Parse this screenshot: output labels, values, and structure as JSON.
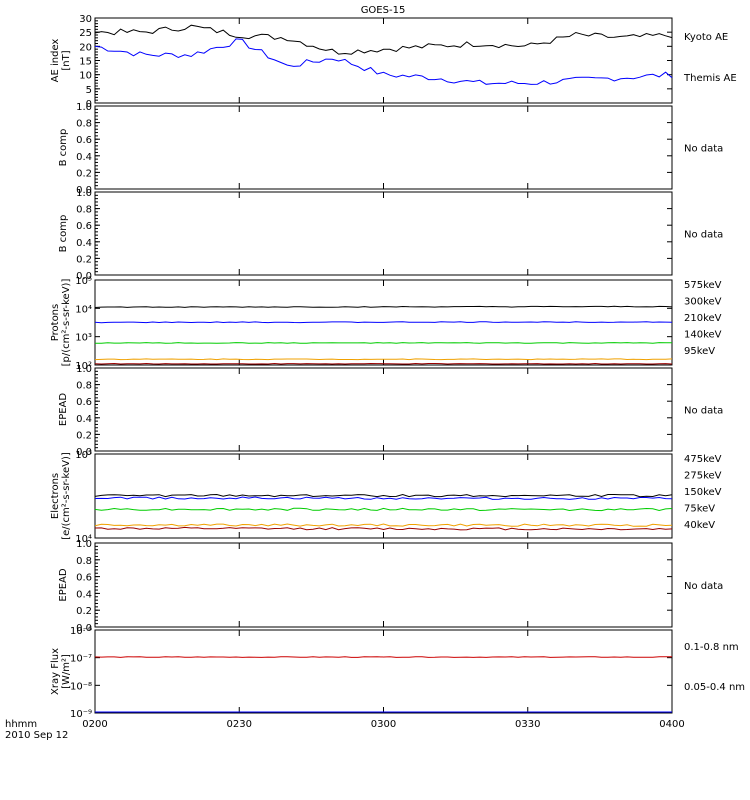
{
  "title": "GOES-15",
  "time_axis": {
    "ticks": [
      "0200",
      "0230",
      "0300",
      "0330",
      "0400"
    ],
    "label_units": "hhmm",
    "label_date": "2010 Sep 12"
  },
  "colors": {
    "black": "#000000",
    "blue": "#0000ff",
    "red": "#cc0000",
    "orange": "#f0a000",
    "green": "#00cc00",
    "darkred": "#990000"
  },
  "chart_data": [
    {
      "type": "line",
      "title": "GOES-15",
      "ylabel": "AE index",
      "yunits": "[nT]",
      "ylim": [
        0,
        30
      ],
      "yticks": [
        "0",
        "5",
        "10",
        "15",
        "20",
        "25",
        "30"
      ],
      "x": [
        "0200",
        "0210",
        "0220",
        "0230",
        "0240",
        "0250",
        "0300",
        "0310",
        "0320",
        "0330",
        "0340",
        "0350",
        "0400"
      ],
      "series": [
        {
          "name": "Kyoto AE",
          "color": "#0000ff",
          "values": [
            20,
            17,
            17,
            22,
            13,
            16,
            10,
            9,
            7,
            7,
            8,
            9,
            10
          ]
        },
        {
          "name": "Themis AE",
          "color": "#000000",
          "values": [
            25,
            25,
            27,
            24,
            23,
            18,
            19,
            20,
            21,
            20,
            24,
            23,
            24
          ]
        }
      ]
    },
    {
      "type": "line",
      "ylabel": "B comp",
      "ylim": [
        0,
        1.0
      ],
      "yticks": [
        "0.0",
        "0.2",
        "0.4",
        "0.6",
        "0.8",
        "1.0"
      ],
      "note": "No data"
    },
    {
      "type": "line",
      "ylabel": "B comp",
      "ylim": [
        0,
        1.0
      ],
      "yticks": [
        "0.0",
        "0.2",
        "0.4",
        "0.6",
        "0.8",
        "1.0"
      ],
      "note": "No data"
    },
    {
      "type": "line",
      "ylabel": "Protons",
      "yunits": "[p/(cm²-s-sr-keV)]",
      "scale": "log",
      "ylim": [
        100,
        100000
      ],
      "yticks": [
        "10²",
        "10³",
        "10⁴",
        "10⁵"
      ],
      "series": [
        {
          "name": "575keV",
          "color": "#990000",
          "values": [
            110,
            110
          ]
        },
        {
          "name": "300keV",
          "color": "#f0a000",
          "values": [
            160,
            160
          ]
        },
        {
          "name": "210keV",
          "color": "#00cc00",
          "values": [
            600,
            600
          ]
        },
        {
          "name": "140keV",
          "color": "#0000ff",
          "values": [
            3200,
            3300
          ]
        },
        {
          "name": "95keV",
          "color": "#000000",
          "values": [
            11000,
            11500
          ]
        }
      ]
    },
    {
      "type": "line",
      "ylabel": "EPEAD",
      "ylim": [
        0,
        1.0
      ],
      "yticks": [
        "0.0",
        "0.2",
        "0.4",
        "0.6",
        "0.8",
        "1.0"
      ],
      "note": "No data"
    },
    {
      "type": "line",
      "ylabel": "Electrons",
      "yunits": "[e/(cm²-s-sr-keV)]",
      "scale": "log",
      "ylim": [
        10000,
        100000
      ],
      "yticks": [
        "10⁴",
        "10⁵"
      ],
      "series": [
        {
          "name": "475keV",
          "color": "#990000",
          "values": [
            13000,
            12800
          ]
        },
        {
          "name": "275keV",
          "color": "#f0a000",
          "values": [
            14300,
            14200
          ]
        },
        {
          "name": "150keV",
          "color": "#00cc00",
          "values": [
            22000,
            21800
          ]
        },
        {
          "name": "75keV",
          "color": "#0000ff",
          "values": [
            30000,
            29500
          ]
        },
        {
          "name": "40keV",
          "color": "#000000",
          "values": [
            32000,
            32000
          ]
        }
      ]
    },
    {
      "type": "line",
      "ylabel": "EPEAD",
      "ylim": [
        0,
        1.0
      ],
      "yticks": [
        "0.0",
        "0.2",
        "0.4",
        "0.6",
        "0.8",
        "1.0"
      ],
      "note": "No data"
    },
    {
      "type": "line",
      "ylabel": "Xray Flux",
      "yunits": "[W/m²]",
      "scale": "log",
      "ylim": [
        1e-09,
        1e-06
      ],
      "yticks": [
        "10⁻⁹",
        "10⁻⁸",
        "10⁻⁷",
        "10⁻⁶"
      ],
      "series": [
        {
          "name": "0.1-0.8 nm",
          "color": "#cc0000",
          "values": [
            1.05e-07,
            1.05e-07
          ]
        },
        {
          "name": "0.05-0.4 nm",
          "color": "#0000ff",
          "values": [
            1e-09,
            1e-09
          ]
        }
      ]
    }
  ]
}
